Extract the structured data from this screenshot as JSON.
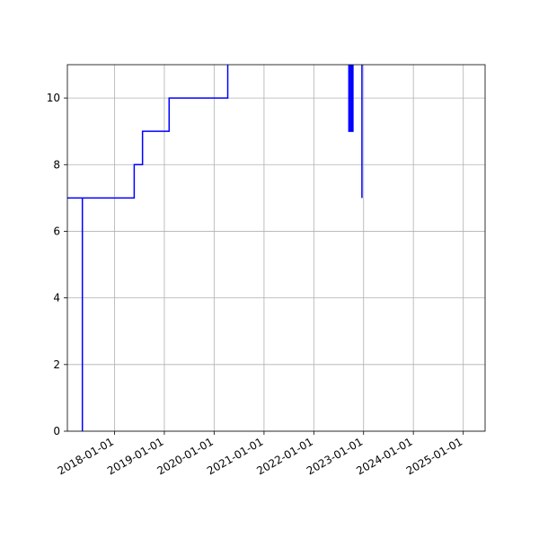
{
  "chart_data": {
    "type": "line",
    "title": "",
    "xlabel": "",
    "ylabel": "",
    "x_axis_kind": "date",
    "xlim": [
      "2017-01-20",
      "2025-06-10"
    ],
    "ylim": [
      0,
      11
    ],
    "grid": true,
    "x_ticks": [
      "2018-01-01",
      "2019-01-01",
      "2020-01-01",
      "2021-01-01",
      "2022-01-01",
      "2023-01-01",
      "2024-01-01",
      "2025-01-01"
    ],
    "y_ticks": [
      0,
      2,
      4,
      6,
      8,
      10
    ],
    "series": [
      {
        "name": "",
        "color": "#0000ff",
        "points": [
          {
            "x": "2017-01-20",
            "y": 7
          },
          {
            "x": "2017-05-10",
            "y": 7
          },
          {
            "x": "2017-05-10",
            "y": 0
          },
          {
            "x": "2017-05-10",
            "y": 7
          },
          {
            "x": "2018-05-25",
            "y": 7
          },
          {
            "x": "2018-05-25",
            "y": 8
          },
          {
            "x": "2018-07-25",
            "y": 8
          },
          {
            "x": "2018-07-25",
            "y": 9
          },
          {
            "x": "2019-02-05",
            "y": 9
          },
          {
            "x": "2019-02-05",
            "y": 10
          },
          {
            "x": "2020-04-10",
            "y": 10
          },
          {
            "x": "2020-04-10",
            "y": 11.5
          },
          {
            "x": "2022-09-15",
            "y": 11.5
          },
          {
            "x": "2022-09-15",
            "y": 9
          },
          {
            "x": "2022-09-25",
            "y": 9
          },
          {
            "x": "2022-09-25",
            "y": 11.5
          },
          {
            "x": "2022-10-05",
            "y": 11.5
          },
          {
            "x": "2022-10-05",
            "y": 9
          },
          {
            "x": "2022-10-15",
            "y": 9
          },
          {
            "x": "2022-10-15",
            "y": 11.5
          },
          {
            "x": "2022-12-20",
            "y": 11.5
          },
          {
            "x": "2022-12-20",
            "y": 7
          }
        ]
      }
    ]
  }
}
